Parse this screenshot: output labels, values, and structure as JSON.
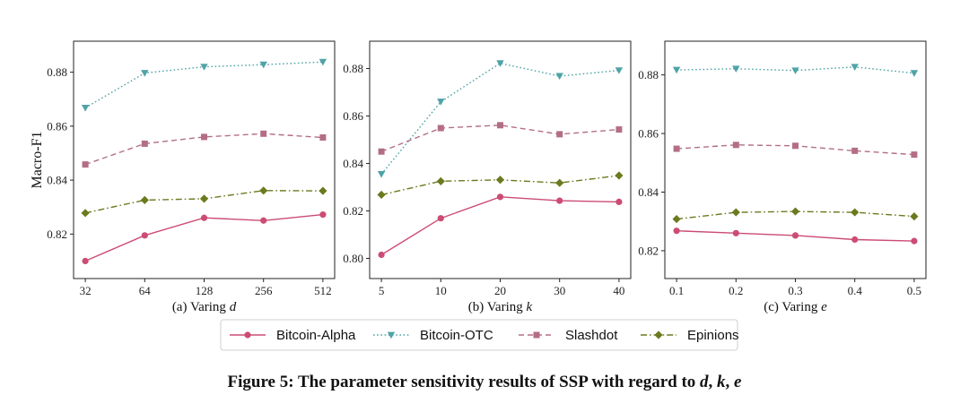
{
  "figure": {
    "caption_prefix": "Figure 5: The parameter sensitivity results of SSP with regard to ",
    "caption_vars": [
      "d",
      "k",
      "e"
    ]
  },
  "legend": [
    {
      "label": "Bitcoin-Alpha",
      "color": "#cc4c74",
      "marker": "circle",
      "dash": "solid"
    },
    {
      "label": "Bitcoin-OTC",
      "color": "#4fa3a6",
      "marker": "triangle-down",
      "dash": "dotted"
    },
    {
      "label": "Slashdot",
      "color": "#b36e86",
      "marker": "square",
      "dash": "dashed"
    },
    {
      "label": "Epinions",
      "color": "#6b7a1e",
      "marker": "diamond",
      "dash": "dashdot"
    }
  ],
  "chart_data": [
    {
      "type": "line",
      "subtitle_prefix": "(a) Varing ",
      "subtitle_var": "d",
      "ylabel": "Macro-F1",
      "x": [
        "32",
        "64",
        "128",
        "256",
        "512"
      ],
      "ylim": [
        0.8035,
        0.8915
      ],
      "yticks": [
        0.82,
        0.84,
        0.86,
        0.88
      ],
      "ytick_labels": [
        "0.82",
        "0.84",
        "0.86",
        "0.88"
      ],
      "series": [
        {
          "name": "Bitcoin-Alpha",
          "values": [
            0.81,
            0.8195,
            0.826,
            0.825,
            0.8272
          ]
        },
        {
          "name": "Bitcoin-OTC",
          "values": [
            0.8668,
            0.8797,
            0.882,
            0.8828,
            0.8838
          ]
        },
        {
          "name": "Slashdot",
          "values": [
            0.8458,
            0.8535,
            0.856,
            0.8572,
            0.8558
          ]
        },
        {
          "name": "Epinions",
          "values": [
            0.8278,
            0.8326,
            0.8331,
            0.8361,
            0.836
          ]
        }
      ]
    },
    {
      "type": "line",
      "subtitle_prefix": "(b) Varing ",
      "subtitle_var": "k",
      "ylabel": "",
      "x": [
        "5",
        "10",
        "20",
        "30",
        "40"
      ],
      "ylim": [
        0.7915,
        0.8915
      ],
      "yticks": [
        0.8,
        0.82,
        0.84,
        0.86,
        0.88
      ],
      "ytick_labels": [
        "0.80",
        "0.82",
        "0.84",
        "0.86",
        "0.88"
      ],
      "series": [
        {
          "name": "Bitcoin-Alpha",
          "values": [
            0.8015,
            0.8169,
            0.8259,
            0.8243,
            0.8238
          ]
        },
        {
          "name": "Bitcoin-OTC",
          "values": [
            0.8355,
            0.866,
            0.8822,
            0.8768,
            0.8792
          ]
        },
        {
          "name": "Slashdot",
          "values": [
            0.845,
            0.8549,
            0.8561,
            0.8523,
            0.8543
          ]
        },
        {
          "name": "Epinions",
          "values": [
            0.8268,
            0.8325,
            0.8331,
            0.8318,
            0.8349
          ]
        }
      ]
    },
    {
      "type": "line",
      "subtitle_prefix": "(c) Varing ",
      "subtitle_var": "e",
      "ylabel": "",
      "x": [
        "0.1",
        "0.2",
        "0.3",
        "0.4",
        "0.5"
      ],
      "ylim": [
        0.8105,
        0.8915
      ],
      "yticks": [
        0.82,
        0.84,
        0.86,
        0.88
      ],
      "ytick_labels": [
        "0.82",
        "0.84",
        "0.86",
        "0.88"
      ],
      "series": [
        {
          "name": "Bitcoin-Alpha",
          "values": [
            0.8268,
            0.826,
            0.8252,
            0.8238,
            0.8233
          ]
        },
        {
          "name": "Bitcoin-OTC",
          "values": [
            0.8817,
            0.8821,
            0.8815,
            0.8827,
            0.8806
          ]
        },
        {
          "name": "Slashdot",
          "values": [
            0.8548,
            0.8561,
            0.8558,
            0.8541,
            0.8528
          ]
        },
        {
          "name": "Epinions",
          "values": [
            0.8308,
            0.8331,
            0.8334,
            0.8331,
            0.8317
          ]
        }
      ]
    }
  ]
}
